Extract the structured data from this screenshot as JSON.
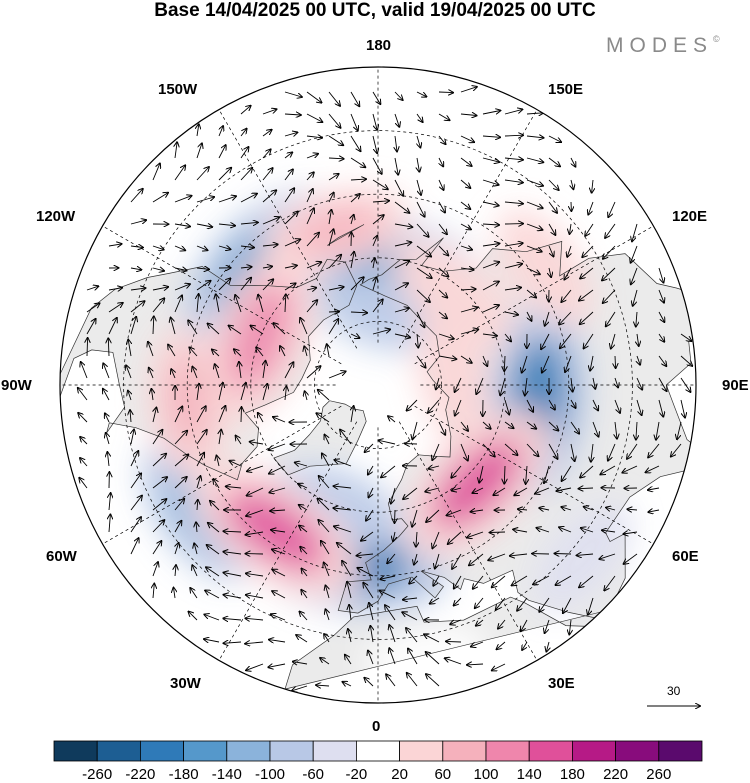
{
  "title": "Base 14/04/2025 00 UTC, valid 19/04/2025 00 UTC",
  "logo": {
    "text": "MODES",
    "mark": "©"
  },
  "longitude_labels": {
    "top": "180",
    "bottom": "0",
    "left": "90W",
    "right": "90E",
    "upper_left_1": "150W",
    "upper_left_2": "120W",
    "upper_right_1": "150E",
    "upper_right_2": "120E",
    "lower_left_1": "60W",
    "lower_left_2": "30W",
    "lower_right_1": "60E",
    "lower_right_2": "30E"
  },
  "wind_reference": {
    "label": "30"
  },
  "colorbar": {
    "labels": [
      "-260",
      "-220",
      "-180",
      "-140",
      "-100",
      "-60",
      "-20",
      "20",
      "60",
      "100",
      "140",
      "180",
      "220",
      "260"
    ],
    "colors": [
      "#0f3a5c",
      "#1d5e93",
      "#2f7ab8",
      "#5598cb",
      "#8bb3db",
      "#b8c8e6",
      "#dedff0",
      "#ffffff",
      "#fbd5d6",
      "#f5b1bc",
      "#ef86ac",
      "#e0509a",
      "#b61a86",
      "#880c7c",
      "#5a0a6d"
    ]
  },
  "anomalies": [
    {
      "name": "low-alaska-pacific",
      "lon": -135,
      "lat": 50,
      "value": -160
    },
    {
      "name": "low-north-pacific",
      "lon": 175,
      "lat": 62,
      "value": -150
    },
    {
      "name": "low-east-siberia",
      "lon": 170,
      "lat": 73,
      "value": -60
    },
    {
      "name": "low-central-asia",
      "lon": 85,
      "lat": 52,
      "value": -180
    },
    {
      "name": "low-west-atlantic",
      "lon": -55,
      "lat": 38,
      "value": -100
    },
    {
      "name": "low-east-atlantic",
      "lon": -10,
      "lat": 48,
      "value": -200
    },
    {
      "name": "low-atlantic-arc",
      "lon": -20,
      "lat": 60,
      "value": -60
    },
    {
      "name": "high-canada",
      "lon": -112,
      "lat": 60,
      "value": 150
    },
    {
      "name": "high-north-pacific",
      "lon": -165,
      "lat": 52,
      "value": 80
    },
    {
      "name": "high-east-us",
      "lon": -85,
      "lat": 45,
      "value": 90
    },
    {
      "name": "high-siberia",
      "lon": 140,
      "lat": 62,
      "value": 70
    },
    {
      "name": "high-east-asia",
      "lon": 125,
      "lat": 42,
      "value": 50
    },
    {
      "name": "high-central-russia",
      "lon": 100,
      "lat": 72,
      "value": 60
    },
    {
      "name": "high-west-russia",
      "lon": 45,
      "lat": 57,
      "value": 160
    },
    {
      "name": "high-mid-atlantic",
      "lon": -35,
      "lat": 48,
      "value": 170
    },
    {
      "name": "low-arabia",
      "lon": 50,
      "lat": 27,
      "value": -40
    },
    {
      "name": "high-north-africa",
      "lon": 10,
      "lat": 25,
      "value": 30
    }
  ],
  "colors": {
    "land_gray": "#ebebeb",
    "coast": "#333333",
    "grid": "#000000"
  }
}
